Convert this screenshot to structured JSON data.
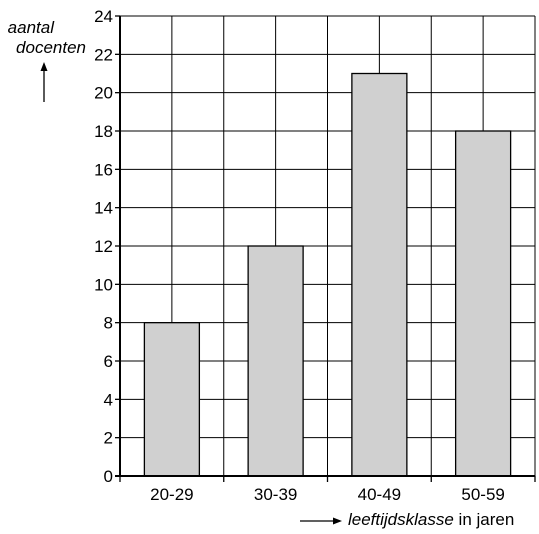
{
  "chart_data": {
    "type": "bar",
    "categories": [
      "20-29",
      "30-39",
      "40-49",
      "50-59"
    ],
    "values": [
      8,
      12,
      21,
      18
    ],
    "ylim": [
      0,
      24
    ],
    "yticks": [
      0,
      2,
      4,
      6,
      8,
      10,
      12,
      14,
      16,
      18,
      20,
      22,
      24
    ],
    "ylabel_line1": "aantal",
    "ylabel_line2": "docenten",
    "xlabel_italic": "leeftijdsklasse",
    "xlabel_rest": " in jaren",
    "grid": true,
    "bar_color": "#d0d0d0"
  }
}
